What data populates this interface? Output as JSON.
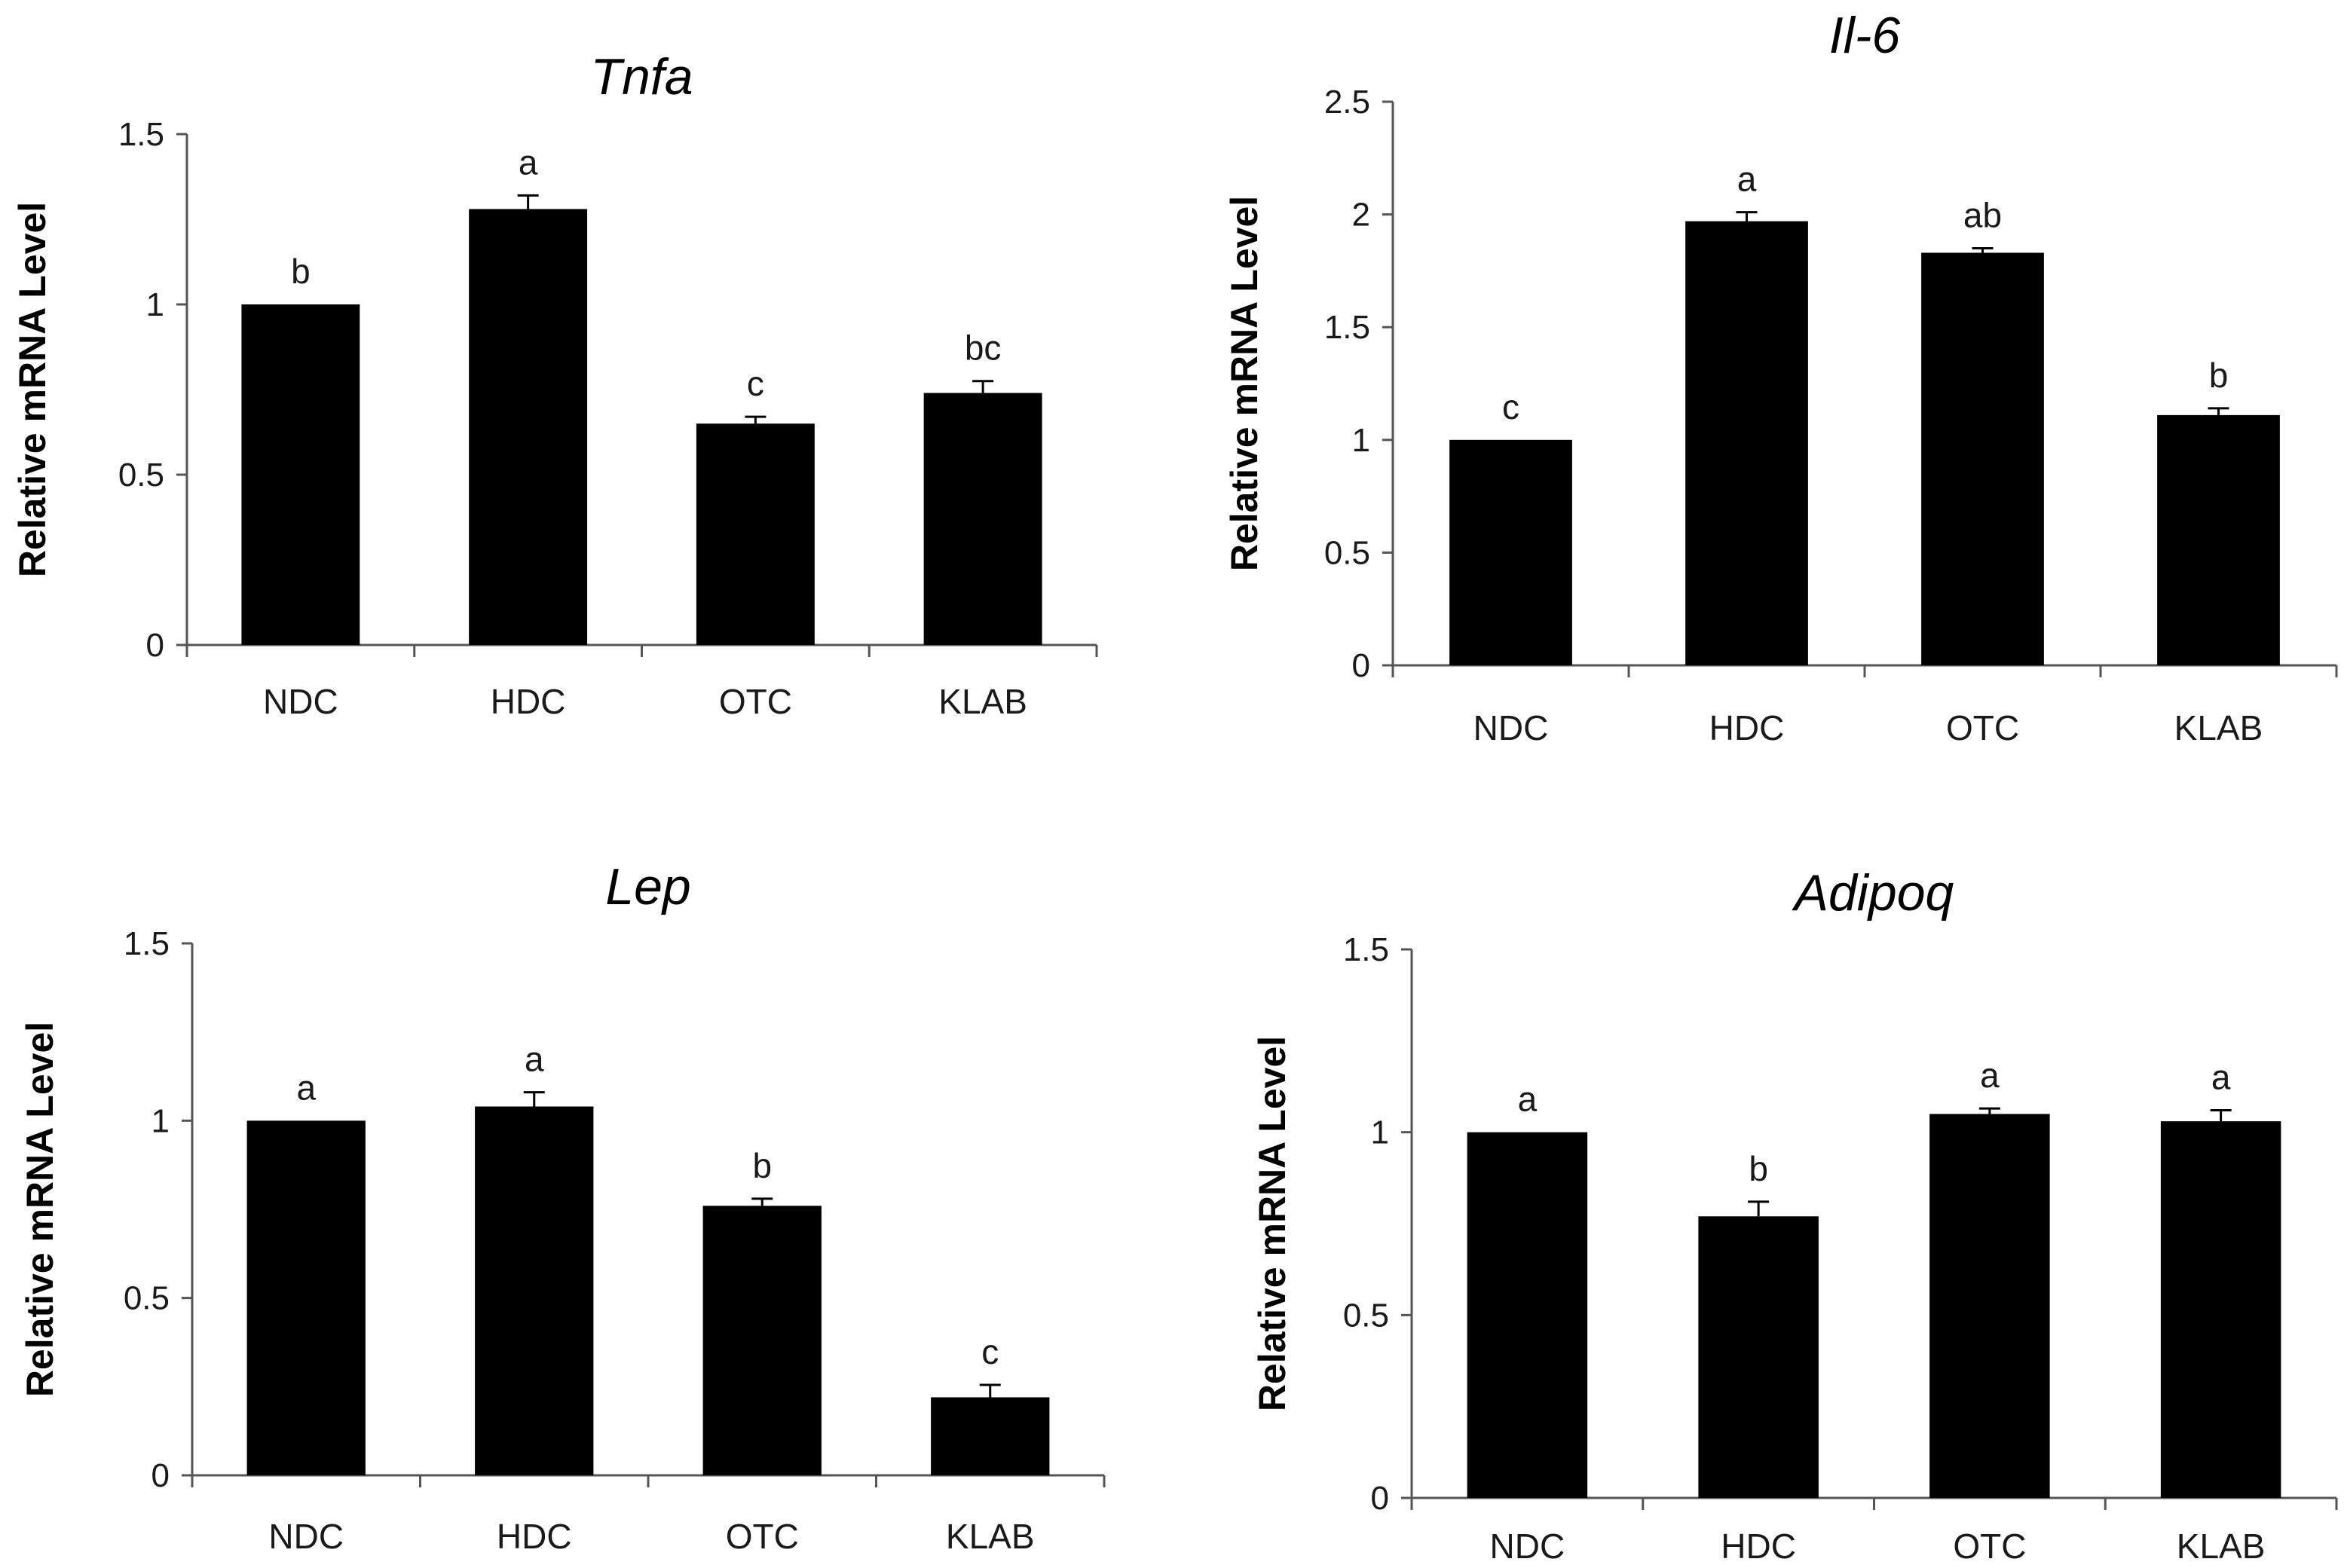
{
  "chart_data": [
    {
      "type": "bar",
      "title": "Tnfa",
      "ylabel": "Relative mRNA Level",
      "xlabel": "",
      "categories": [
        "NDC",
        "HDC",
        "OTC",
        "KLAB"
      ],
      "values": [
        1.0,
        1.28,
        0.65,
        0.74
      ],
      "errors": [
        0.0,
        0.04,
        0.02,
        0.035
      ],
      "annotations": [
        "b",
        "a",
        "c",
        "bc"
      ],
      "ylim": [
        0,
        1.5
      ],
      "yticks": [
        0,
        0.5,
        1,
        1.5
      ],
      "ytick_labels": [
        "0",
        "0.5",
        "1",
        "1.5"
      ],
      "grid": false
    },
    {
      "type": "bar",
      "title": "Il-6",
      "ylabel": "Relative mRNA Level",
      "xlabel": "",
      "categories": [
        "NDC",
        "HDC",
        "OTC",
        "KLAB"
      ],
      "values": [
        1.0,
        1.97,
        1.83,
        1.11
      ],
      "errors": [
        0.0,
        0.04,
        0.02,
        0.03
      ],
      "annotations": [
        "c",
        "a",
        "ab",
        "b"
      ],
      "ylim": [
        0,
        2.5
      ],
      "yticks": [
        0,
        0.5,
        1,
        1.5,
        2,
        2.5
      ],
      "ytick_labels": [
        "0",
        "0.5",
        "1",
        "1.5",
        "2",
        "2.5"
      ],
      "grid": false
    },
    {
      "type": "bar",
      "title": "Lep",
      "ylabel": "Relative mRNA Level",
      "xlabel": "",
      "categories": [
        "NDC",
        "HDC",
        "OTC",
        "KLAB"
      ],
      "values": [
        1.0,
        1.04,
        0.76,
        0.22
      ],
      "errors": [
        0.0,
        0.04,
        0.02,
        0.035
      ],
      "annotations": [
        "a",
        "a",
        "b",
        "c"
      ],
      "ylim": [
        0,
        1.5
      ],
      "yticks": [
        0,
        0.5,
        1,
        1.5
      ],
      "ytick_labels": [
        "0",
        "0.5",
        "1",
        "1.5"
      ],
      "grid": false
    },
    {
      "type": "bar",
      "title": "Adipoq",
      "ylabel": "Relative mRNA Level",
      "xlabel": "",
      "categories": [
        "NDC",
        "HDC",
        "OTC",
        "KLAB"
      ],
      "values": [
        1.0,
        0.77,
        1.05,
        1.03
      ],
      "errors": [
        0.0,
        0.04,
        0.015,
        0.03
      ],
      "annotations": [
        "a",
        "b",
        "a",
        "a"
      ],
      "ylim": [
        0,
        1.5
      ],
      "yticks": [
        0,
        0.5,
        1,
        1.5
      ],
      "ytick_labels": [
        "0",
        "0.5",
        "1",
        "1.5"
      ],
      "grid": false
    }
  ]
}
